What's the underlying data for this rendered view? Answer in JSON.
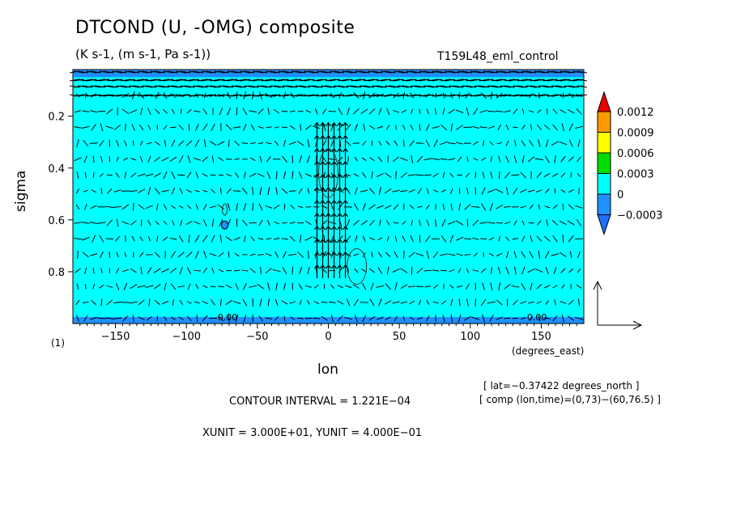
{
  "chart_data": {
    "type": "heatmap",
    "title": "DTCOND (U, -OMG) composite",
    "subtitle": "(K s-1, (m s-1, Pa s-1))",
    "run": "T159L48_eml_control",
    "xlabel": "lon",
    "x_units": "(degrees_east)",
    "ylabel": "sigma",
    "level_marker": "(1)",
    "xlim": [
      -180,
      180
    ],
    "ylim": [
      1.0,
      0.02
    ],
    "x_ticks": [
      -150,
      -100,
      -50,
      0,
      50,
      100,
      150
    ],
    "x_tick_labels": [
      "−150",
      "−100",
      "−50",
      "0",
      "50",
      "100",
      "150"
    ],
    "y_ticks": [
      0.2,
      0.4,
      0.6,
      0.8
    ],
    "y_tick_labels": [
      "0.2",
      "0.4",
      "0.6",
      "0.8"
    ],
    "colorbar": {
      "levels": [
        -0.0003,
        0,
        0.0003,
        0.0006,
        0.0009,
        0.0012
      ],
      "labels": [
        "−0.0003",
        "0",
        "0.0003",
        "0.0006",
        "0.0009",
        "0.0012"
      ],
      "colors": [
        "#1e90ff",
        "#00ffff",
        "#00dd00",
        "#ffff00",
        "#ff9900",
        "#ee0000"
      ],
      "under_color": "#1e70ff",
      "over_color": "#ee0000"
    },
    "background_color": "#00ffff",
    "band_color": "#1e90ff",
    "contour_labels": [
      "0.00",
      "0.00"
    ],
    "info_lines": [
      "[ lat=−0.37422 degrees_north ]",
      "[ comp (lon,time)=(0,73)−(60,76.5) ]"
    ],
    "contour_interval": "CONTOUR INTERVAL = 1.221E−04",
    "vector_units": "XUNIT = 3.000E+01, YUNIT = 4.000E−01"
  }
}
